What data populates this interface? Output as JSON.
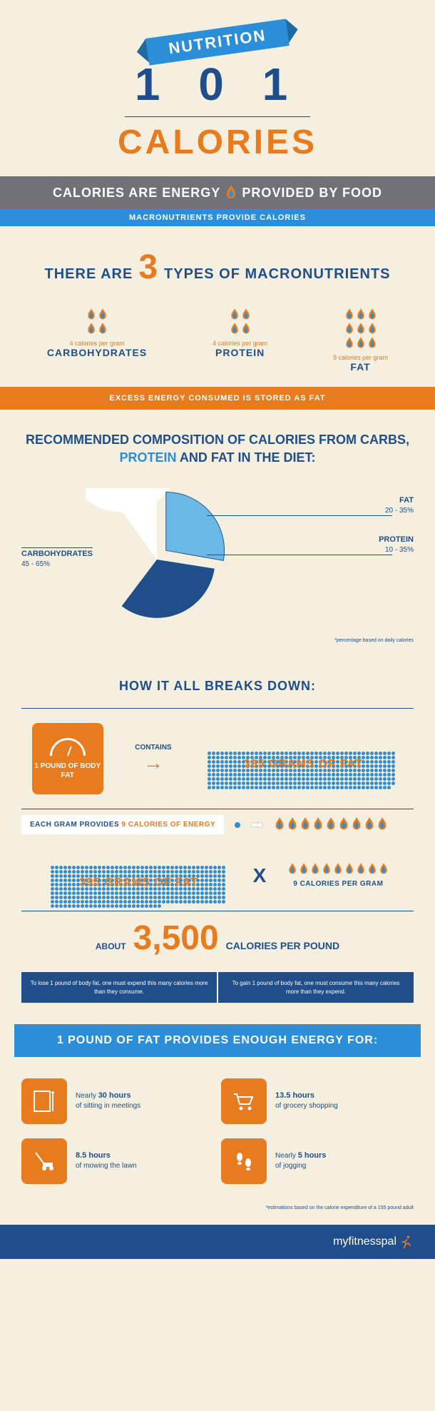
{
  "header": {
    "ribbon": "NUTRITION",
    "num": "1 0 1",
    "subtitle": "CALORIES"
  },
  "gray_band": {
    "left": "CALORIES ARE ENERGY",
    "right": "PROVIDED BY FOOD"
  },
  "blue_band": "MACRONUTRIENTS PROVIDE CALORIES",
  "macro": {
    "title_left": "THERE ARE",
    "title_num": "3",
    "title_right": "TYPES OF MACRONUTRIENTS",
    "items": [
      {
        "flame_rows": 2,
        "flames_per_row": 2,
        "cpg": "4 calories per gram",
        "name": "CARBOHYDRATES"
      },
      {
        "flame_rows": 2,
        "flames_per_row": 2,
        "cpg": "4 calories per gram",
        "name": "PROTEIN"
      },
      {
        "flame_rows": 3,
        "flames_per_row": 3,
        "cpg": "9 calories per gram",
        "name": "FAT"
      }
    ]
  },
  "orange_band": "EXCESS ENERGY CONSUMED IS STORED AS FAT",
  "pie": {
    "title_pre": "RECOMMENDED COMPOSITION OF CALORIES FROM CARBS, ",
    "protein_word": "PROTEIN",
    "mid": " AND ",
    "fat_word": "FAT",
    "title_post": " IN THE DIET:",
    "labels": {
      "carbs": {
        "name": "CARBOHYDRATES",
        "val": "45 - 65%"
      },
      "fat": {
        "name": "FAT",
        "val": "20 - 35%"
      },
      "protein": {
        "name": "PROTEIN",
        "val": "10 - 35%"
      }
    },
    "note": "*percentage based on daily calories",
    "colors": {
      "carbs": "#ffffff",
      "protein": "#1f4e8a",
      "fat": "#6bb7e6",
      "bg": "#f4efdf"
    }
  },
  "breakdown": {
    "title": "HOW IT ALL BREAKS DOWN:",
    "scale_label": "1 POUND OF BODY FAT",
    "contains": "CONTAINS",
    "fat_grams": "395 GRAMS OF FAT",
    "dots_count": 395,
    "dot_color": "#2a8ed8",
    "energy_strip_pre": "EACH GRAM PROVIDES ",
    "energy_strip_nine": "9 CALORIES OF ENERGY",
    "multiply": {
      "left": "395 GRAMS OF FAT",
      "x": "X",
      "right_flames": 9,
      "right_label": "9 CALORIES PER GRAM"
    },
    "result": {
      "about": "ABOUT",
      "num": "3,500",
      "unit": "CALORIES PER POUND"
    },
    "tips": [
      "To lose 1 pound of body fat, one must expend this many calories more than they consume.",
      "To gain 1 pound of body fat, one must consume this many calories more than they expend."
    ]
  },
  "energy_for": {
    "title": "1 POUND OF FAT PROVIDES ENOUGH ENERGY FOR:",
    "activities": [
      {
        "icon": "notepad",
        "bold": "30 hours",
        "pre": "Nearly ",
        "post": " of sitting in meetings"
      },
      {
        "icon": "cart",
        "bold": "13.5 hours",
        "pre": "",
        "post": " of grocery shopping"
      },
      {
        "icon": "mower",
        "bold": "8.5 hours",
        "pre": "",
        "post": " of mowing the lawn"
      },
      {
        "icon": "footsteps",
        "bold": "5 hours",
        "pre": "Nearly ",
        "post": " of jogging"
      }
    ],
    "note": "*estimations based on the calorie expenditure of a 155 pound adult"
  },
  "footer": {
    "brand": "myfitnesspal"
  },
  "colors": {
    "bg": "#f4efdf",
    "blue": "#1f4e8a",
    "lightblue": "#2a8ed8",
    "skyblue": "#6bb7e6",
    "orange": "#e87b1e",
    "gray": "#6f7277",
    "white": "#ffffff"
  }
}
